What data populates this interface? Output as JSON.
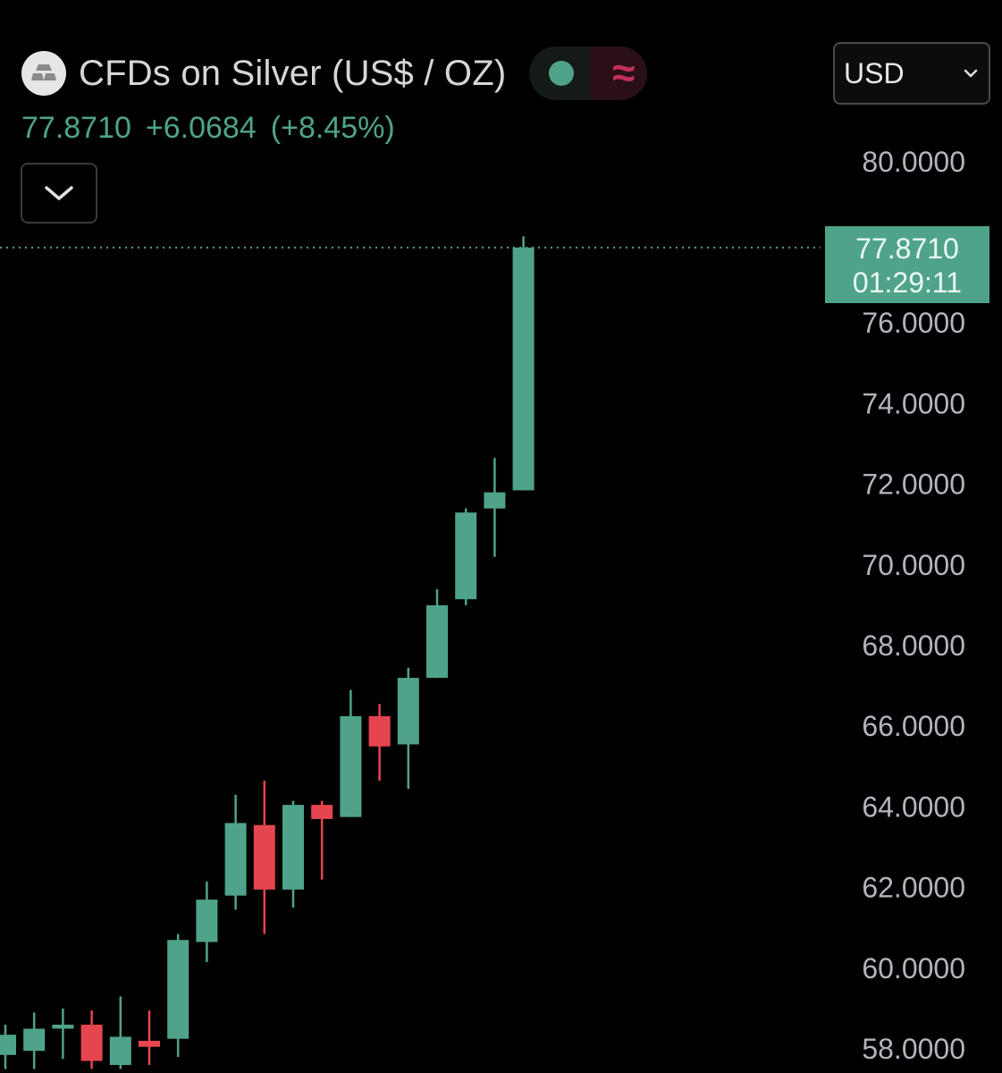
{
  "header": {
    "title": "CFDs on Silver (US$ / OZ)",
    "market_status_icon": "green-dot",
    "approx_symbol": "≈",
    "last_price": "77.8710",
    "change": "+6.0684",
    "change_pct": "(+8.45%)"
  },
  "currency_select": {
    "value": "USD"
  },
  "last_price_badge": {
    "price": "77.8710",
    "countdown": "01:29:11"
  },
  "colors": {
    "up": "#4fa38a",
    "down": "#e5454f",
    "background": "#000000",
    "axis_text": "#b2b5be"
  },
  "chart_data": {
    "type": "candlestick",
    "title": "",
    "xlabel": "",
    "ylabel": "",
    "ylim": [
      57.6,
      81.2
    ],
    "y_ticks": [
      "58.0000",
      "60.0000",
      "62.0000",
      "64.0000",
      "66.0000",
      "68.0000",
      "70.0000",
      "72.0000",
      "74.0000",
      "76.0000",
      "80.0000"
    ],
    "last_value": 77.871,
    "candles": [
      {
        "open": 57.85,
        "high": 58.6,
        "low": 57.5,
        "close": 58.35
      },
      {
        "open": 57.95,
        "high": 58.9,
        "low": 57.5,
        "close": 58.5
      },
      {
        "open": 58.5,
        "high": 59.0,
        "low": 57.75,
        "close": 58.6
      },
      {
        "open": 58.6,
        "high": 58.95,
        "low": 57.5,
        "close": 57.7
      },
      {
        "open": 57.6,
        "high": 59.3,
        "low": 57.5,
        "close": 58.3
      },
      {
        "open": 58.2,
        "high": 58.95,
        "low": 57.6,
        "close": 58.05
      },
      {
        "open": 58.25,
        "high": 60.85,
        "low": 57.8,
        "close": 60.7
      },
      {
        "open": 60.65,
        "high": 62.15,
        "low": 60.15,
        "close": 61.7
      },
      {
        "open": 61.8,
        "high": 64.3,
        "low": 61.45,
        "close": 63.6
      },
      {
        "open": 63.55,
        "high": 64.65,
        "low": 60.85,
        "close": 61.95
      },
      {
        "open": 61.95,
        "high": 64.15,
        "low": 61.5,
        "close": 64.05
      },
      {
        "open": 64.05,
        "high": 64.15,
        "low": 62.2,
        "close": 63.7
      },
      {
        "open": 63.75,
        "high": 66.9,
        "low": 63.75,
        "close": 66.25
      },
      {
        "open": 66.25,
        "high": 66.55,
        "low": 64.65,
        "close": 65.5
      },
      {
        "open": 65.55,
        "high": 67.45,
        "low": 64.45,
        "close": 67.2
      },
      {
        "open": 67.2,
        "high": 69.4,
        "low": 67.2,
        "close": 69.0
      },
      {
        "open": 69.15,
        "high": 71.4,
        "low": 69.0,
        "close": 71.3
      },
      {
        "open": 71.4,
        "high": 72.65,
        "low": 70.2,
        "close": 71.8
      },
      {
        "open": 71.85,
        "high": 78.15,
        "low": 71.85,
        "close": 77.871
      }
    ]
  }
}
